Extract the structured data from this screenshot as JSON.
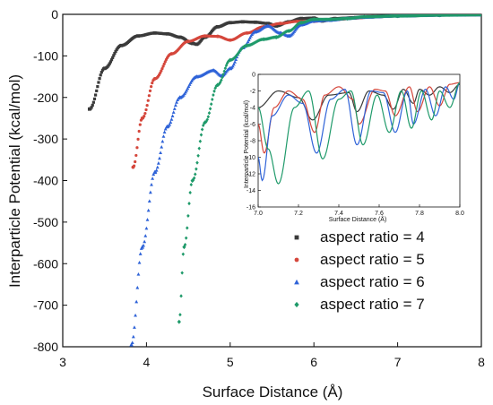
{
  "chart_data": [
    {
      "type": "scatter",
      "title": "",
      "xlabel": "Surface Distance (Å)",
      "ylabel": "Interparticle Potential (kcal/mol)",
      "xlim": [
        3,
        8
      ],
      "ylim": [
        -800,
        0
      ],
      "xticks": [
        "3",
        "4",
        "5",
        "6",
        "7",
        "8"
      ],
      "yticks": [
        "0",
        "-100",
        "-200",
        "-300",
        "-400",
        "-500",
        "-600",
        "-700",
        "-800"
      ],
      "grid": false,
      "legend_position": "bottom-right",
      "series": [
        {
          "name": "aspect ratio = 4",
          "color": "#3a3a3a",
          "marker": "square",
          "x": [
            3.32,
            3.5,
            3.7,
            3.9,
            4.1,
            4.25,
            4.4,
            4.55,
            4.6,
            4.7,
            4.85,
            5.0,
            5.15,
            5.3,
            5.45,
            5.55,
            5.7,
            5.85,
            6.0,
            6.1,
            6.25,
            6.5,
            6.7,
            7.0,
            7.5,
            8.0
          ],
          "y": [
            -228,
            -130,
            -75,
            -52,
            -45,
            -47,
            -55,
            -70,
            -72,
            -55,
            -30,
            -20,
            -18,
            -19,
            -22,
            -28,
            -18,
            -10,
            -9,
            -16,
            -10,
            -8,
            -6,
            -4,
            -2,
            -1
          ]
        },
        {
          "name": "aspect ratio = 5",
          "color": "#d5473c",
          "marker": "circle",
          "x": [
            3.84,
            3.95,
            4.1,
            4.3,
            4.5,
            4.7,
            4.85,
            5.0,
            5.2,
            5.4,
            5.6,
            5.8,
            6.0,
            6.15,
            6.3,
            6.5,
            6.7,
            7.0,
            7.5,
            8.0
          ],
          "y": [
            -368,
            -250,
            -155,
            -95,
            -65,
            -52,
            -53,
            -62,
            -45,
            -30,
            -22,
            -17,
            -17,
            -14,
            -12,
            -9,
            -6,
            -4,
            -2,
            -1
          ]
        },
        {
          "name": "aspect ratio = 6",
          "color": "#2f63d8",
          "marker": "triangle",
          "x": [
            3.82,
            3.95,
            4.1,
            4.25,
            4.4,
            4.6,
            4.8,
            4.9,
            5.0,
            5.15,
            5.3,
            5.45,
            5.6,
            5.7,
            5.85,
            6.0,
            6.2,
            6.4,
            6.6,
            7.0,
            7.5,
            8.0
          ],
          "y": [
            -795,
            -560,
            -380,
            -270,
            -200,
            -150,
            -135,
            -148,
            -130,
            -80,
            -42,
            -28,
            -45,
            -52,
            -25,
            -16,
            -14,
            -10,
            -7,
            -4,
            -2,
            -1
          ]
        },
        {
          "name": "aspect ratio = 7",
          "color": "#1f9a6a",
          "marker": "diamond",
          "x": [
            4.39,
            4.45,
            4.55,
            4.7,
            4.85,
            5.0,
            5.2,
            5.4,
            5.55,
            5.7,
            5.85,
            6.0,
            6.2,
            6.4,
            6.6,
            7.0,
            7.5,
            8.0
          ],
          "y": [
            -740,
            -560,
            -400,
            -260,
            -170,
            -110,
            -75,
            -60,
            -55,
            -40,
            -20,
            -12,
            -12,
            -10,
            -6,
            -4,
            -2,
            -1
          ]
        }
      ]
    },
    {
      "type": "line",
      "title": "",
      "xlabel": "Surface Distance (Å)",
      "ylabel": "Interparticle Potential (kcal/mol)",
      "xlim": [
        7.0,
        8.0
      ],
      "ylim": [
        -16,
        0
      ],
      "xticks": [
        "7.0",
        "7.2",
        "7.4",
        "7.6",
        "7.8",
        "8.0"
      ],
      "yticks": [
        "0",
        "-2",
        "-4",
        "-6",
        "-8",
        "-10",
        "-12",
        "-14",
        "-16"
      ],
      "grid": false,
      "legend_position": "none",
      "series": [
        {
          "color": "#3a3a3a",
          "x": [
            7.0,
            7.1,
            7.2,
            7.27,
            7.35,
            7.45,
            7.49,
            7.55,
            7.62,
            7.67,
            7.72,
            7.77,
            7.8,
            7.85,
            7.9,
            7.95,
            8.0
          ],
          "y": [
            -4,
            -2,
            -2.8,
            -5.5,
            -2.5,
            -2.2,
            -4.5,
            -2,
            -2.5,
            -4.2,
            -1.8,
            -3.5,
            -1.8,
            -2.5,
            -1.5,
            -2.2,
            -1.2
          ]
        },
        {
          "color": "#d5473c",
          "x": [
            7.0,
            7.03,
            7.08,
            7.15,
            7.22,
            7.28,
            7.33,
            7.4,
            7.47,
            7.5,
            7.58,
            7.63,
            7.68,
            7.75,
            7.79,
            7.85,
            7.9,
            7.95,
            8.0
          ],
          "y": [
            -6,
            -9.5,
            -4,
            -2,
            -3,
            -7,
            -2.5,
            -1.5,
            -3,
            -6,
            -1.8,
            -2,
            -5,
            -1.5,
            -4.5,
            -1.5,
            -3.8,
            -1.2,
            -1
          ]
        },
        {
          "color": "#2f63d8",
          "x": [
            7.0,
            7.02,
            7.07,
            7.15,
            7.22,
            7.29,
            7.36,
            7.43,
            7.49,
            7.56,
            7.62,
            7.68,
            7.74,
            7.77,
            7.83,
            7.88,
            7.93,
            7.97,
            8.0
          ],
          "y": [
            -10,
            -12.8,
            -5,
            -2.5,
            -3.5,
            -9.5,
            -3,
            -1.8,
            -8.5,
            -2,
            -2.2,
            -7,
            -2,
            -6,
            -1.8,
            -5,
            -1.5,
            -3,
            -1
          ]
        },
        {
          "color": "#1f9a6a",
          "x": [
            7.0,
            7.05,
            7.1,
            7.18,
            7.25,
            7.32,
            7.4,
            7.46,
            7.52,
            7.59,
            7.65,
            7.71,
            7.76,
            7.81,
            7.86,
            7.9,
            7.95,
            8.0
          ],
          "y": [
            -4,
            -9,
            -13.2,
            -4,
            -2,
            -10.2,
            -3,
            -2,
            -8.5,
            -2.5,
            -7,
            -2,
            -6.5,
            -2,
            -5.5,
            -2,
            -4,
            -1
          ]
        }
      ]
    }
  ]
}
